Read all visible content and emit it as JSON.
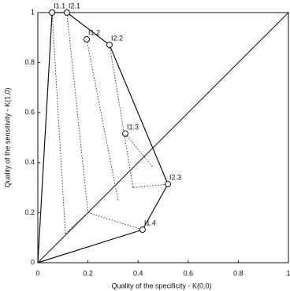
{
  "chart_data": {
    "type": "scatter",
    "xlabel": "Quality of the specificity - K(0,0)",
    "ylabel": "Quality of the sensitivity - K(1,0)",
    "xlim": [
      0,
      1
    ],
    "ylim": [
      0,
      1
    ],
    "xticks": [
      0,
      0.2,
      0.4,
      0.6,
      0.8,
      1
    ],
    "yticks": [
      0,
      0.2,
      0.4,
      0.6,
      0.8,
      1
    ],
    "color": "#111111",
    "points": {
      "labels": [
        "I1.1",
        "I2.1",
        "I1.2",
        "I2.2",
        "I1.3",
        "I2.3",
        "I1.4"
      ],
      "x": [
        0.057,
        0.116,
        0.195,
        0.286,
        0.349,
        0.519,
        0.418
      ],
      "y": [
        1,
        1,
        0.893,
        0.871,
        0.516,
        0.314,
        0.132
      ]
    },
    "hull": {
      "x": [
        0,
        0.057,
        0.116,
        0.286,
        0.519,
        0.418,
        0
      ],
      "y": [
        0,
        1,
        1,
        0.871,
        0.314,
        0.132,
        0
      ]
    },
    "diagonal": {
      "x": [
        0,
        1
      ],
      "y": [
        0,
        1
      ]
    },
    "dotted": [
      {
        "x": [
          0.057,
          0.11
        ],
        "y": [
          1,
          0.116
        ]
      },
      {
        "x": [
          0.116,
          0.2
        ],
        "y": [
          1,
          0.2
        ]
      },
      {
        "x": [
          0.195,
          0.32
        ],
        "y": [
          0.893,
          0.25
        ]
      },
      {
        "x": [
          0.286,
          0.38
        ],
        "y": [
          0.871,
          0.3
        ]
      },
      {
        "x": [
          0.349,
          0.46
        ],
        "y": [
          0.516,
          0.38
        ]
      },
      {
        "x": [
          0.11,
          0.2
        ],
        "y": [
          0.116,
          0.2
        ]
      },
      {
        "x": [
          0.2,
          0.418
        ],
        "y": [
          0.2,
          0.132
        ]
      },
      {
        "x": [
          0.38,
          0.519
        ],
        "y": [
          0.3,
          0.314
        ]
      }
    ]
  }
}
